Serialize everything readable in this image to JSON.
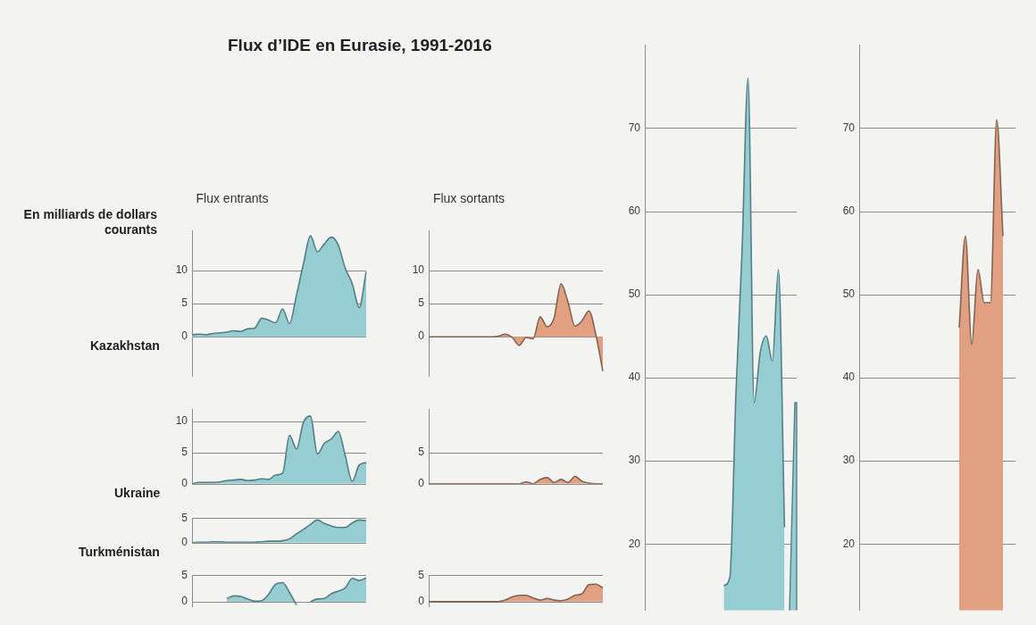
{
  "chart_data": [
    {
      "type": "area",
      "title": "Flux d’IDE en Eurasie, 1991-2016",
      "subtitle": "Flux entrants",
      "ylabel": "En milliards de dollars courants",
      "xlabel": "Kazakhstan",
      "categories": [
        null,
        null,
        null,
        null,
        null,
        null,
        null,
        null,
        null,
        null,
        null,
        null,
        null,
        null,
        null,
        null,
        null,
        null,
        null,
        null,
        null,
        null,
        null,
        null,
        null,
        null
      ],
      "values": [
        0.3,
        0.4,
        0.3,
        0.5,
        0.6,
        0.7,
        0.9,
        0.8,
        1.2,
        1.3,
        2.8,
        2.5,
        2.1,
        4.2,
        2.0,
        6.3,
        11.0,
        15.2,
        12.8,
        14.0,
        15.0,
        13.8,
        10.3,
        8.0,
        4.4,
        9.8
      ],
      "color": "#96cdd2",
      "ylim": [
        -6,
        16
      ],
      "yticks": [
        0,
        5,
        10
      ],
      "grid": "y",
      "tick_labels": "y"
    },
    {
      "type": "area",
      "subtitle": "Flux sortants",
      "categories": [
        null,
        null,
        null,
        null,
        null,
        null,
        null,
        null,
        null,
        null,
        null,
        null,
        null,
        null,
        null,
        null,
        null,
        null,
        null,
        null,
        null,
        null,
        null,
        null,
        null,
        null
      ],
      "values": [
        0,
        0,
        0,
        0,
        0,
        0,
        0,
        0,
        0,
        0,
        0.1,
        0.4,
        -0.1,
        -1.3,
        -0.1,
        -0.3,
        3.0,
        1.5,
        2.8,
        8.0,
        5.2,
        1.6,
        2.4,
        3.9,
        0.3,
        -5.2
      ],
      "color": "#e2a082",
      "ylim": [
        -6,
        16
      ],
      "yticks": [
        0,
        5,
        10
      ],
      "grid": "y",
      "tick_labels": "y"
    },
    {
      "type": "area",
      "xlabel": "Ukraine",
      "categories": [
        null,
        null,
        null,
        null,
        null,
        null,
        null,
        null,
        null,
        null,
        null,
        null,
        null,
        null,
        null,
        null,
        null,
        null,
        null,
        null,
        null,
        null,
        null,
        null,
        null,
        null
      ],
      "values": [
        0.0,
        0.2,
        0.2,
        0.2,
        0.3,
        0.5,
        0.6,
        0.7,
        0.5,
        0.6,
        0.8,
        0.7,
        1.4,
        1.7,
        7.8,
        5.6,
        9.9,
        10.9,
        4.8,
        6.5,
        7.2,
        8.4,
        4.5,
        0.4,
        3.0,
        3.4
      ],
      "color": "#96cdd2",
      "ylim": [
        0,
        12
      ],
      "yticks": [
        0,
        5,
        10
      ],
      "grid": "y",
      "tick_labels": "y"
    },
    {
      "type": "area",
      "categories": [
        null,
        null,
        null,
        null,
        null,
        null,
        null,
        null,
        null,
        null,
        null,
        null,
        null,
        null,
        null,
        null,
        null,
        null,
        null,
        null,
        null,
        null,
        null,
        null,
        null,
        null
      ],
      "values": [
        0,
        0,
        0,
        0,
        0,
        0,
        0,
        0,
        0,
        0,
        0,
        0,
        0,
        0,
        0.3,
        0,
        0.7,
        1.0,
        0.2,
        0.7,
        0.2,
        1.2,
        0.4,
        0.1,
        0,
        0
      ],
      "color": "#e2a082",
      "ylim": [
        0,
        12
      ],
      "yticks": [
        0,
        5
      ],
      "grid": "y",
      "tick_labels": "y"
    },
    {
      "type": "area",
      "xlabel": "Turkménistan",
      "categories": [
        null,
        null,
        null,
        null,
        null,
        null,
        null,
        null,
        null,
        null,
        null,
        null,
        null,
        null,
        null,
        null,
        null,
        null,
        null,
        null,
        null,
        null,
        null,
        null,
        null,
        null
      ],
      "values": [
        0,
        0.1,
        0.1,
        0.2,
        0.2,
        0.1,
        0.1,
        0.1,
        0.1,
        0.1,
        0.2,
        0.3,
        0.3,
        0.4,
        0.8,
        1.8,
        2.7,
        3.7,
        4.6,
        3.9,
        3.4,
        3.1,
        3.1,
        4.0,
        4.6,
        4.5
      ],
      "color": "#96cdd2",
      "ylim": [
        0,
        5
      ],
      "yticks": [
        0,
        5
      ],
      "grid": "y",
      "tick_labels": "y"
    },
    {
      "type": "area",
      "categories": [
        null,
        null,
        null,
        null,
        null,
        null,
        null,
        null,
        null,
        null,
        null,
        null,
        null,
        null,
        null,
        null,
        null,
        null,
        null,
        null,
        null,
        null,
        null,
        null,
        null,
        null
      ],
      "values": [
        null,
        null,
        null,
        null,
        null,
        0.6,
        1.1,
        1.0,
        0.5,
        0.1,
        0.2,
        1.4,
        3.3,
        3.6,
        1.7,
        -0.6,
        null,
        0.0,
        0.5,
        0.6,
        1.5,
        2.0,
        2.6,
        4.4,
        4.0,
        4.5
      ],
      "color": "#96cdd2",
      "ylim": [
        -1,
        5
      ],
      "yticks": [
        0,
        5
      ],
      "grid": "y",
      "tick_labels": "y"
    },
    {
      "type": "area",
      "categories": [
        null,
        null,
        null,
        null,
        null,
        null,
        null,
        null,
        null,
        null,
        null,
        null,
        null,
        null,
        null,
        null,
        null,
        null,
        null,
        null,
        null,
        null,
        null,
        null,
        null,
        null
      ],
      "values": [
        0,
        0,
        0,
        0,
        0,
        0,
        0,
        0,
        0,
        0,
        0,
        0.3,
        0.9,
        1.2,
        1.2,
        0.7,
        0.3,
        0.6,
        0.3,
        0.2,
        0.5,
        1.2,
        1.5,
        3.2,
        3.3,
        2.6
      ],
      "color": "#e2a082",
      "ylim": [
        -1,
        5
      ],
      "yticks": [
        0,
        5
      ],
      "grid": "y",
      "tick_labels": "y"
    },
    {
      "type": "area",
      "categories": [
        null,
        null,
        null,
        null,
        null,
        null,
        null,
        null,
        null,
        null,
        null,
        null,
        null,
        null,
        null,
        null,
        null,
        null,
        null,
        null,
        null,
        null,
        null,
        null,
        null,
        null
      ],
      "values": [
        null,
        null,
        null,
        null,
        null,
        null,
        null,
        null,
        null,
        null,
        null,
        null,
        null,
        15,
        16,
        38,
        55,
        76,
        37,
        43,
        45,
        42,
        53,
        22,
        null,
        37
      ],
      "color": "#96cdd2",
      "ylim": [
        12,
        80
      ],
      "yticks": [
        20,
        30,
        40,
        50,
        60,
        70
      ],
      "grid": "y",
      "tick_labels": "y"
    },
    {
      "type": "area",
      "categories": [
        null,
        null,
        null,
        null,
        null,
        null,
        null,
        null,
        null,
        null,
        null,
        null,
        null,
        null,
        null,
        null,
        null,
        null,
        null,
        null,
        null,
        null,
        null,
        null,
        null,
        null
      ],
      "values": [
        null,
        null,
        null,
        null,
        null,
        null,
        null,
        null,
        null,
        null,
        null,
        null,
        null,
        null,
        null,
        null,
        46,
        57,
        44,
        53,
        49,
        49,
        71,
        57,
        null,
        null
      ],
      "color": "#e2a082",
      "ylim": [
        12,
        80
      ],
      "yticks": [
        20,
        30,
        40,
        50,
        60,
        70
      ],
      "grid": "y",
      "tick_labels": "y"
    }
  ]
}
